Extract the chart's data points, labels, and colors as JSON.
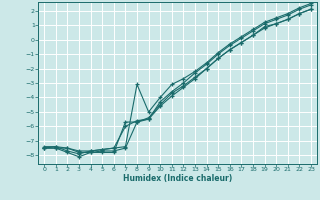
{
  "xlabel": "Humidex (Indice chaleur)",
  "bg_color": "#cce8e8",
  "line_color": "#1a6b6b",
  "grid_color": "#ffffff",
  "xlim": [
    -0.5,
    23.5
  ],
  "ylim": [
    -8.6,
    2.6
  ],
  "xticks": [
    0,
    1,
    2,
    3,
    4,
    5,
    6,
    7,
    8,
    9,
    10,
    11,
    12,
    13,
    14,
    15,
    16,
    17,
    18,
    19,
    20,
    21,
    22,
    23
  ],
  "yticks": [
    -8,
    -7,
    -6,
    -5,
    -4,
    -3,
    -2,
    -1,
    0,
    1,
    2
  ],
  "series": [
    {
      "x": [
        0,
        1,
        2,
        3,
        4,
        5,
        6,
        7,
        8,
        9,
        10,
        11,
        12,
        13,
        14,
        15,
        16,
        17,
        18,
        19,
        20,
        21,
        22,
        23
      ],
      "y": [
        -7.5,
        -7.5,
        -7.8,
        -8.1,
        -7.8,
        -7.7,
        -7.7,
        -7.5,
        -5.7,
        -5.4,
        -4.5,
        -3.7,
        -3.2,
        -2.6,
        -2.0,
        -1.3,
        -0.7,
        -0.2,
        0.3,
        0.9,
        1.1,
        1.4,
        1.8,
        2.1
      ]
    },
    {
      "x": [
        0,
        1,
        2,
        3,
        4,
        5,
        6,
        7,
        8,
        9,
        10,
        11,
        12,
        13,
        14,
        15,
        16,
        17,
        18,
        19,
        20,
        21,
        22,
        23
      ],
      "y": [
        -7.5,
        -7.5,
        -7.5,
        -7.8,
        -7.8,
        -7.8,
        -7.8,
        -5.7,
        -5.7,
        -5.5,
        -4.6,
        -3.9,
        -3.3,
        -2.7,
        -2.0,
        -1.3,
        -0.7,
        -0.2,
        0.3,
        0.8,
        1.1,
        1.4,
        1.8,
        2.1
      ]
    },
    {
      "x": [
        0,
        1,
        2,
        3,
        4,
        5,
        6,
        7,
        8,
        9,
        10,
        11,
        12,
        13,
        14,
        15,
        16,
        17,
        18,
        19,
        20,
        21,
        22,
        23
      ],
      "y": [
        -7.5,
        -7.4,
        -7.7,
        -7.9,
        -7.7,
        -7.6,
        -7.5,
        -7.4,
        -3.1,
        -5.0,
        -4.0,
        -3.1,
        -2.7,
        -2.2,
        -1.6,
        -0.9,
        -0.3,
        0.2,
        0.7,
        1.2,
        1.5,
        1.8,
        2.2,
        2.5
      ]
    },
    {
      "x": [
        0,
        1,
        2,
        3,
        4,
        5,
        6,
        7,
        8,
        9,
        10,
        11,
        12,
        13,
        14,
        15,
        16,
        17,
        18,
        19,
        20,
        21,
        22,
        23
      ],
      "y": [
        -7.4,
        -7.4,
        -7.5,
        -7.7,
        -7.7,
        -7.6,
        -7.5,
        -6.0,
        -5.6,
        -5.5,
        -4.3,
        -3.6,
        -3.0,
        -2.3,
        -1.7,
        -1.0,
        -0.4,
        0.1,
        0.6,
        1.1,
        1.4,
        1.7,
        2.1,
        2.4
      ]
    }
  ]
}
